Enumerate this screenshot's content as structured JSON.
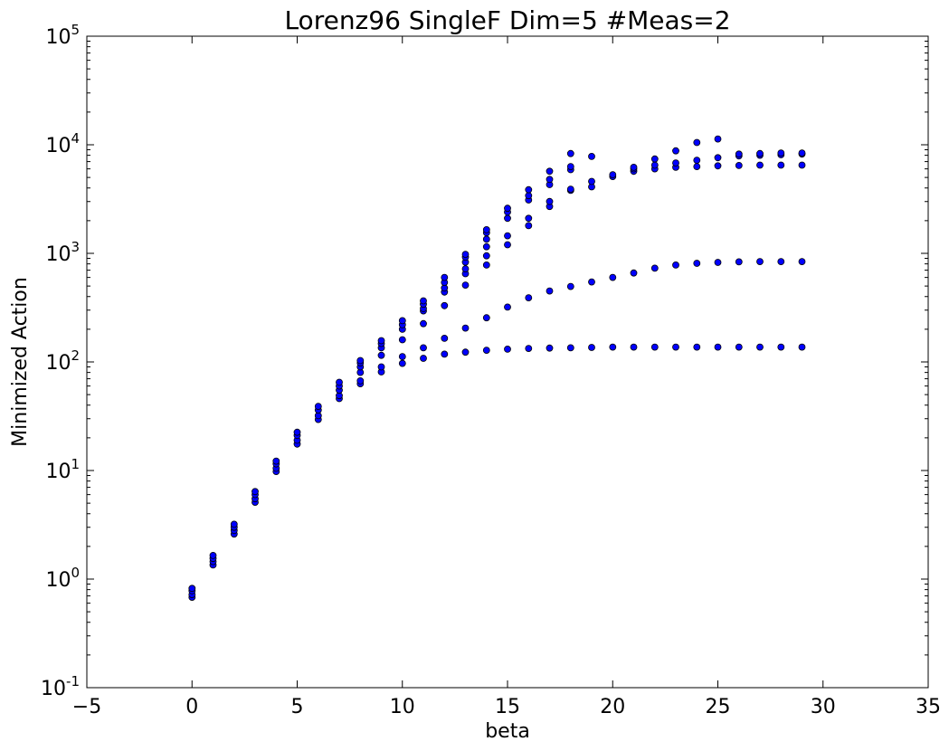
{
  "chart_data": {
    "type": "scatter",
    "title": "Lorenz96 SingleF Dim=5 #Meas=2",
    "xlabel": "beta",
    "ylabel": "Minimized Action",
    "xlim": [
      -5,
      35
    ],
    "ylim": [
      0.1,
      100000
    ],
    "yscale": "log",
    "grid": false,
    "x_ticks": [
      "−5",
      "0",
      "5",
      "10",
      "15",
      "20",
      "25",
      "30",
      "35"
    ],
    "x_tick_values": [
      -5,
      0,
      5,
      10,
      15,
      20,
      25,
      30,
      35
    ],
    "y_ticks": [
      {
        "base": "10",
        "exp": "-1",
        "value": 0.1
      },
      {
        "base": "10",
        "exp": "0",
        "value": 1
      },
      {
        "base": "10",
        "exp": "1",
        "value": 10
      },
      {
        "base": "10",
        "exp": "2",
        "value": 100
      },
      {
        "base": "10",
        "exp": "3",
        "value": 1000
      },
      {
        "base": "10",
        "exp": "4",
        "value": 10000
      },
      {
        "base": "10",
        "exp": "5",
        "value": 100000
      }
    ],
    "marker_color": "#0000ff",
    "points": [
      [
        0,
        0.68
      ],
      [
        0,
        0.72
      ],
      [
        0,
        0.78
      ],
      [
        0,
        0.82
      ],
      [
        1,
        1.35
      ],
      [
        1,
        1.45
      ],
      [
        1,
        1.55
      ],
      [
        1,
        1.65
      ],
      [
        2,
        2.6
      ],
      [
        2,
        2.8
      ],
      [
        2,
        3.0
      ],
      [
        2,
        3.2
      ],
      [
        3,
        5.1
      ],
      [
        3,
        5.5
      ],
      [
        3,
        6.0
      ],
      [
        3,
        6.4
      ],
      [
        4,
        9.8
      ],
      [
        4,
        10.5
      ],
      [
        4,
        11.5
      ],
      [
        4,
        12.2
      ],
      [
        5,
        17.5
      ],
      [
        5,
        19
      ],
      [
        5,
        21
      ],
      [
        5,
        22.5
      ],
      [
        6,
        29.5
      ],
      [
        6,
        32
      ],
      [
        6,
        36
      ],
      [
        6,
        39
      ],
      [
        7,
        46
      ],
      [
        7,
        49
      ],
      [
        7,
        55
      ],
      [
        7,
        60
      ],
      [
        7,
        65
      ],
      [
        8,
        63
      ],
      [
        8,
        67
      ],
      [
        8,
        80
      ],
      [
        8,
        90
      ],
      [
        8,
        98
      ],
      [
        8,
        103
      ],
      [
        9,
        81
      ],
      [
        9,
        90
      ],
      [
        9,
        115
      ],
      [
        9,
        135
      ],
      [
        9,
        148
      ],
      [
        9,
        157
      ],
      [
        10,
        97
      ],
      [
        10,
        112
      ],
      [
        10,
        160
      ],
      [
        10,
        200
      ],
      [
        10,
        220
      ],
      [
        10,
        240
      ],
      [
        11,
        108
      ],
      [
        11,
        135
      ],
      [
        11,
        225
      ],
      [
        11,
        295
      ],
      [
        11,
        310
      ],
      [
        11,
        340
      ],
      [
        11,
        365
      ],
      [
        12,
        118
      ],
      [
        12,
        165
      ],
      [
        12,
        330
      ],
      [
        12,
        440
      ],
      [
        12,
        480
      ],
      [
        12,
        540
      ],
      [
        12,
        600
      ],
      [
        13,
        123
      ],
      [
        13,
        205
      ],
      [
        13,
        510
      ],
      [
        13,
        650
      ],
      [
        13,
        720
      ],
      [
        13,
        830
      ],
      [
        13,
        920
      ],
      [
        13,
        980
      ],
      [
        14,
        128
      ],
      [
        14,
        255
      ],
      [
        14,
        780
      ],
      [
        14,
        950
      ],
      [
        14,
        1150
      ],
      [
        14,
        1350
      ],
      [
        14,
        1550
      ],
      [
        14,
        1650
      ],
      [
        15,
        131
      ],
      [
        15,
        320
      ],
      [
        15,
        1200
      ],
      [
        15,
        1450
      ],
      [
        15,
        2100
      ],
      [
        15,
        2400
      ],
      [
        15,
        2600
      ],
      [
        16,
        133
      ],
      [
        16,
        390
      ],
      [
        16,
        1800
      ],
      [
        16,
        2100
      ],
      [
        16,
        3100
      ],
      [
        16,
        3400
      ],
      [
        16,
        3850
      ],
      [
        17,
        134
      ],
      [
        17,
        450
      ],
      [
        17,
        2700
      ],
      [
        17,
        3000
      ],
      [
        17,
        4300
      ],
      [
        17,
        4800
      ],
      [
        17,
        5700
      ],
      [
        18,
        135
      ],
      [
        18,
        495
      ],
      [
        18,
        3800
      ],
      [
        18,
        3900
      ],
      [
        18,
        5900
      ],
      [
        18,
        6300
      ],
      [
        18,
        8300
      ],
      [
        19,
        136
      ],
      [
        19,
        545
      ],
      [
        19,
        4100
      ],
      [
        19,
        4600
      ],
      [
        19,
        7800
      ],
      [
        20,
        137
      ],
      [
        20,
        600
      ],
      [
        20,
        5100
      ],
      [
        20,
        5300
      ],
      [
        21,
        137
      ],
      [
        21,
        660
      ],
      [
        21,
        5700
      ],
      [
        21,
        6000
      ],
      [
        21,
        6200
      ],
      [
        22,
        137
      ],
      [
        22,
        730
      ],
      [
        22,
        6000
      ],
      [
        22,
        6500
      ],
      [
        22,
        7400
      ],
      [
        23,
        137
      ],
      [
        23,
        780
      ],
      [
        23,
        6200
      ],
      [
        23,
        6800
      ],
      [
        23,
        8800
      ],
      [
        24,
        137
      ],
      [
        24,
        810
      ],
      [
        24,
        6300
      ],
      [
        24,
        7200
      ],
      [
        24,
        10500
      ],
      [
        25,
        137
      ],
      [
        25,
        825
      ],
      [
        25,
        6400
      ],
      [
        25,
        7600
      ],
      [
        25,
        11300
      ],
      [
        26,
        137
      ],
      [
        26,
        835
      ],
      [
        26,
        6450
      ],
      [
        26,
        7900
      ],
      [
        26,
        8200
      ],
      [
        27,
        137
      ],
      [
        27,
        840
      ],
      [
        27,
        6500
      ],
      [
        27,
        8000
      ],
      [
        27,
        8300
      ],
      [
        28,
        137
      ],
      [
        28,
        840
      ],
      [
        28,
        6500
      ],
      [
        28,
        8100
      ],
      [
        28,
        8400
      ],
      [
        29,
        137
      ],
      [
        29,
        840
      ],
      [
        29,
        6500
      ],
      [
        29,
        8200
      ],
      [
        29,
        8400
      ]
    ]
  }
}
